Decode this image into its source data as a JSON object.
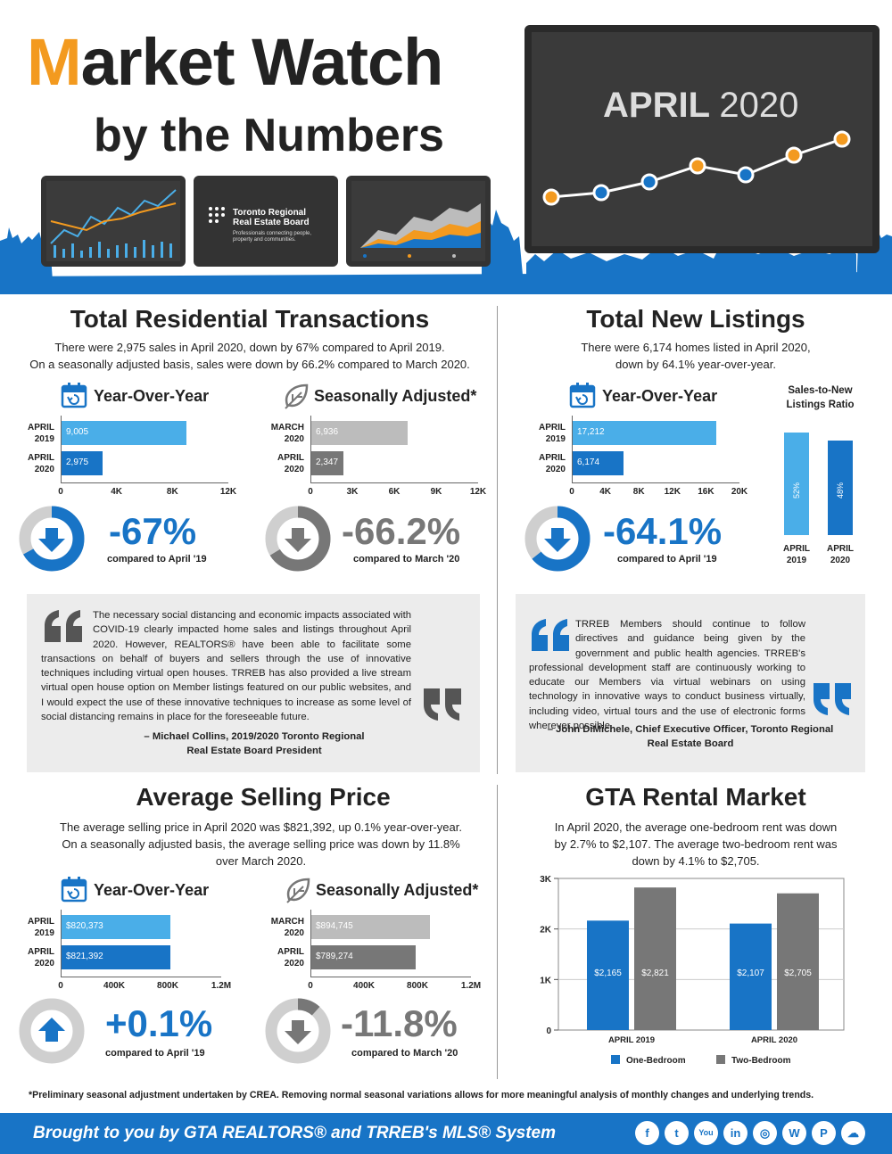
{
  "header": {
    "title_m": "M",
    "title_rest": "arket Watch",
    "subtitle": "by the Numbers",
    "monitor_brand_line1": "Toronto Regional",
    "monitor_brand_line2": "Real Estate Board",
    "monitor_brand_tagline": "Professionals connecting people, property and communities.",
    "month": "APRIL",
    "year": "2020"
  },
  "transactions": {
    "title": "Total Residential Transactions",
    "desc1": "There were 2,975 sales in April 2020, down by 67% compared to April 2019.",
    "desc2": "On a seasonally adjusted basis, sales were down by 66.2% compared to March 2020.",
    "yoy": {
      "heading": "Year-Over-Year",
      "bars": [
        {
          "label1": "APRIL",
          "label2": "2019",
          "value": 9005,
          "text": "9,005"
        },
        {
          "label1": "APRIL",
          "label2": "2020",
          "value": 2975,
          "text": "2,975"
        }
      ],
      "ticks": [
        "0",
        "4K",
        "8K",
        "12K"
      ],
      "max": 12000,
      "pct": "-67%",
      "compare": "compared to April '19"
    },
    "sa": {
      "heading": "Seasonally Adjusted*",
      "bars": [
        {
          "label1": "MARCH",
          "label2": "2020",
          "value": 6936,
          "text": "6,936"
        },
        {
          "label1": "APRIL",
          "label2": "2020",
          "value": 2347,
          "text": "2,347"
        }
      ],
      "ticks": [
        "0",
        "3K",
        "6K",
        "9K",
        "12K"
      ],
      "max": 12000,
      "pct": "-66.2%",
      "compare": "compared to March '20"
    }
  },
  "listings": {
    "title": "Total New Listings",
    "desc1": "There were 6,174 homes listed in April 2020,",
    "desc2": "down by 64.1% year-over-year.",
    "yoy": {
      "heading": "Year-Over-Year",
      "bars": [
        {
          "label1": "APRIL",
          "label2": "2019",
          "value": 17212,
          "text": "17,212"
        },
        {
          "label1": "APRIL",
          "label2": "2020",
          "value": 6174,
          "text": "6,174"
        }
      ],
      "ticks": [
        "0",
        "4K",
        "8K",
        "12K",
        "16K",
        "20K"
      ],
      "max": 20000,
      "pct": "-64.1%",
      "compare": "compared to April '19"
    },
    "ratio": {
      "heading1": "Sales-to-New",
      "heading2": "Listings Ratio",
      "bars": [
        {
          "label1": "APRIL",
          "label2": "2019",
          "value": 52,
          "text": "52%"
        },
        {
          "label1": "APRIL",
          "label2": "2020",
          "value": 48,
          "text": "48%"
        }
      ]
    }
  },
  "quote1": {
    "text": "The necessary social distancing and economic impacts associated with COVID-19 clearly impacted home sales and listings throughout April 2020. However, REALTORS® have been able to facilitate some transactions on behalf of buyers and sellers through the use of innovative techniques including virtual open houses. TRREB has also provided a live stream virtual open house option on Member listings featured on our public websites, and I would expect the use of these innovative techniques to increase as some level of social distancing remains in place for the foreseeable future.",
    "author1": "– Michael Collins, 2019/2020 Toronto Regional",
    "author2": "Real Estate Board President"
  },
  "quote2": {
    "text": "TRREB Members should continue to follow directives and guidance being given by the government and public health agencies. TRREB's professional development staff are continuously working to educate our Members via virtual webinars on using technology in innovative ways to conduct business virtually, including video, virtual tours and the use of electronic forms wherever possible.",
    "author1": "– John DiMichele, Chief Executive Officer, Toronto Regional",
    "author2": "Real Estate Board"
  },
  "price": {
    "title": "Average Selling Price",
    "desc1": "The average selling price in April 2020 was $821,392, up 0.1% year-over-year.",
    "desc2": "On a seasonally adjusted basis, the average selling price was down by 11.8%",
    "desc3": "over March 2020.",
    "yoy": {
      "heading": "Year-Over-Year",
      "bars": [
        {
          "label1": "APRIL",
          "label2": "2019",
          "value": 820373,
          "text": "$820,373"
        },
        {
          "label1": "APRIL",
          "label2": "2020",
          "value": 821392,
          "text": "$821,392"
        }
      ],
      "ticks": [
        "0",
        "400K",
        "800K",
        "1.2M"
      ],
      "max": 1200000,
      "pct": "+0.1%",
      "compare": "compared to April '19"
    },
    "sa": {
      "heading": "Seasonally Adjusted*",
      "bars": [
        {
          "label1": "MARCH",
          "label2": "2020",
          "value": 894745,
          "text": "$894,745"
        },
        {
          "label1": "APRIL",
          "label2": "2020",
          "value": 789274,
          "text": "$789,274"
        }
      ],
      "ticks": [
        "0",
        "400K",
        "800K",
        "1.2M"
      ],
      "max": 1200000,
      "pct": "-11.8%",
      "compare": "compared to March '20"
    }
  },
  "rental": {
    "title": "GTA Rental Market",
    "desc1": "In April 2020, the average one-bedroom rent was down",
    "desc2": "by 2.7% to $2,107.  The average two-bedroom rent was",
    "desc3": "down by 4.1% to $2,705.",
    "chart_data": {
      "type": "bar",
      "categories": [
        "APRIL 2019",
        "APRIL 2020"
      ],
      "series": [
        {
          "name": "One-Bedroom",
          "values": [
            2165,
            2107
          ],
          "labels": [
            "$2,165",
            "$2,107"
          ]
        },
        {
          "name": "Two-Bedroom",
          "values": [
            2821,
            2705
          ],
          "labels": [
            "$2,821",
            "$2,705"
          ]
        }
      ],
      "yticks": [
        "0",
        "1K",
        "2K",
        "3K"
      ],
      "ylim": [
        0,
        3000
      ]
    }
  },
  "footnote": "*Preliminary seasonal adjustment undertaken by CREA. Removing normal seasonal variations allows for more meaningful analysis of monthly changes and underlying trends.",
  "footer": {
    "text": "Brought to you by GTA REALTORS® and TRREB's MLS® System",
    "social": [
      "f",
      "t",
      "You",
      "in",
      "◎",
      "W",
      "P",
      "☁"
    ]
  },
  "colors": {
    "blue": "#1874c6",
    "light_blue": "#4aaee8",
    "grey": "#777777",
    "light_grey": "#bcbcbc",
    "orange": "#f39a1f"
  }
}
